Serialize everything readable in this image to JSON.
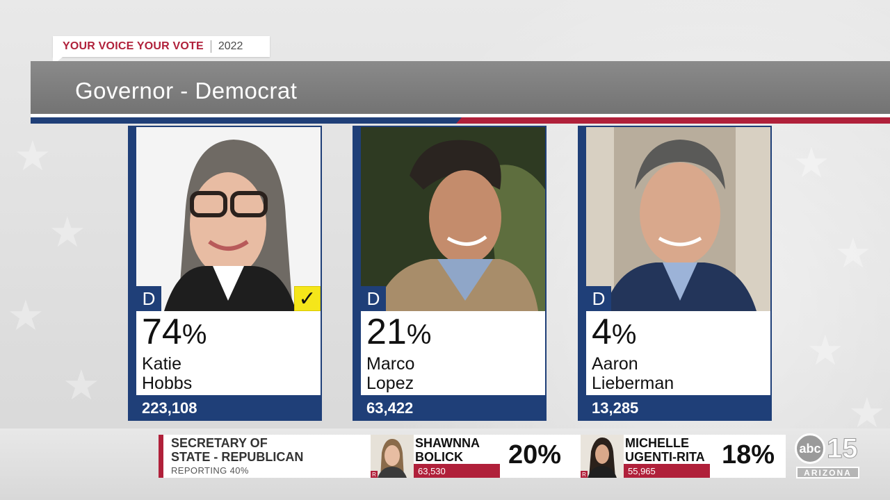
{
  "tag": {
    "left": "YOUR VOICE YOUR VOTE",
    "right": "2022"
  },
  "race": {
    "title": "Governor - Democrat"
  },
  "candidates": [
    {
      "party": "D",
      "percent": "74",
      "percent_sign": "%",
      "first_name": "Katie",
      "last_name": "Hobbs",
      "votes": "223,108",
      "winner": true,
      "check_glyph": "✓"
    },
    {
      "party": "D",
      "percent": "21",
      "percent_sign": "%",
      "first_name": "Marco",
      "last_name": "Lopez",
      "votes": "63,422",
      "winner": false
    },
    {
      "party": "D",
      "percent": "4",
      "percent_sign": "%",
      "first_name": "Aaron",
      "last_name": "Lieberman",
      "votes": "13,285",
      "winner": false
    }
  ],
  "ticker": {
    "race_line1": "SECRETARY OF",
    "race_line2": "STATE - REPUBLICAN",
    "reporting": "REPORTING 40%",
    "candidates": [
      {
        "party": "R",
        "name_line1": "SHAWNNA",
        "name_line2": "BOLICK",
        "votes": "63,530",
        "percent": "20%"
      },
      {
        "party": "R",
        "name_line1": "MICHELLE",
        "name_line2": "UGENTI-RITA",
        "votes": "55,965",
        "percent": "18%"
      }
    ]
  },
  "logo": {
    "network": "abc",
    "channel": "15",
    "region": "ARIZONA"
  },
  "colors": {
    "blue": "#1f3f78",
    "red": "#b0203a",
    "winner_check": "#f5e61a",
    "title_bar": "#7d7d7d"
  }
}
